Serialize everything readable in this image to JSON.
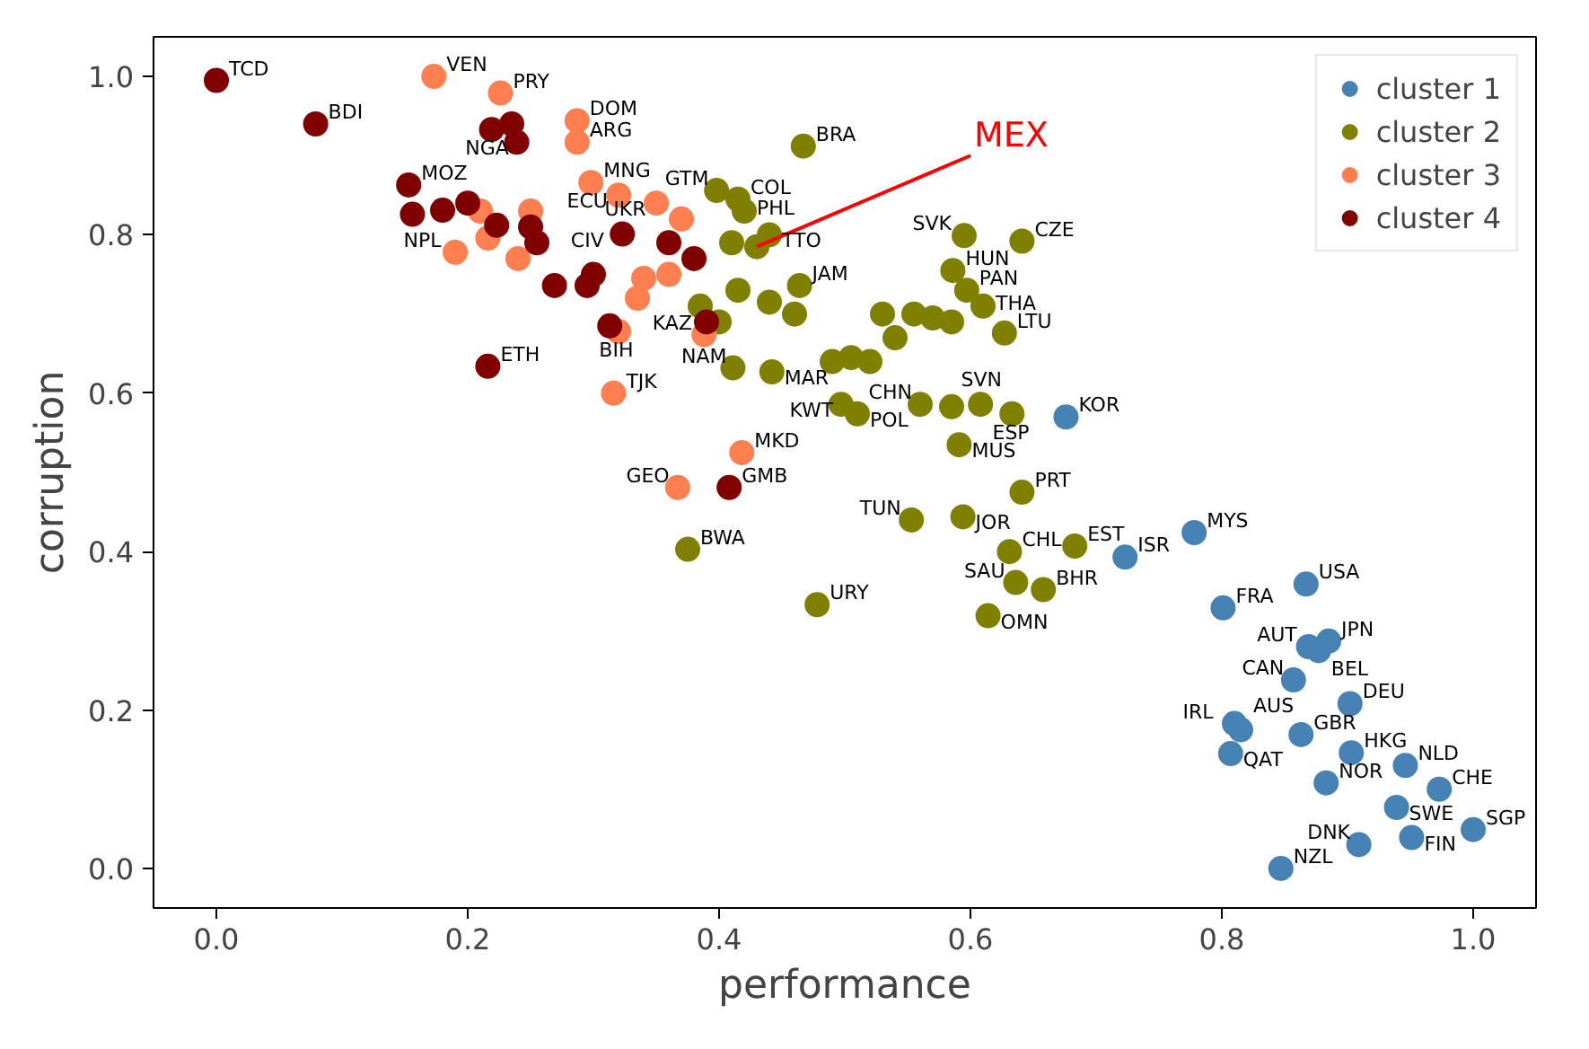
{
  "chart_data": {
    "type": "scatter",
    "xlabel": "performance",
    "ylabel": "corruption",
    "xlim": [
      -0.05,
      1.05
    ],
    "ylim": [
      -0.05,
      1.05
    ],
    "xticks": [
      {
        "value": 0,
        "label": "0.0"
      },
      {
        "value": 0.2,
        "label": "0.2"
      },
      {
        "value": 0.4,
        "label": "0.4"
      },
      {
        "value": 0.6,
        "label": "0.6"
      },
      {
        "value": 0.8,
        "label": "0.8"
      },
      {
        "value": 1,
        "label": "1.0"
      }
    ],
    "yticks": [
      {
        "value": 0,
        "label": "0.0"
      },
      {
        "value": 0.2,
        "label": "0.2"
      },
      {
        "value": 0.4,
        "label": "0.4"
      },
      {
        "value": 0.6,
        "label": "0.6"
      },
      {
        "value": 0.8,
        "label": "0.8"
      },
      {
        "value": 1,
        "label": "1.0"
      }
    ],
    "grid": false,
    "legend": "top right",
    "marker": "circle",
    "series": [
      {
        "name": "cluster 1",
        "color": "#4682b4",
        "x": [
          0.676,
          0.778,
          0.723,
          0.867,
          0.801,
          0.869,
          0.885,
          0.877,
          0.857,
          0.902,
          0.81,
          0.815,
          0.863,
          0.807,
          0.903,
          0.883,
          0.946,
          0.973,
          0.939,
          1.0,
          0.951,
          0.909,
          0.847
        ],
        "values": [
          0.57,
          0.424,
          0.393,
          0.359,
          0.329,
          0.28,
          0.287,
          0.275,
          0.238,
          0.208,
          0.183,
          0.175,
          0.169,
          0.145,
          0.146,
          0.108,
          0.13,
          0.1,
          0.077,
          0.049,
          0.039,
          0.03,
          0.0
        ]
      },
      {
        "name": "cluster 2",
        "color": "#808000",
        "x": [
          0.467,
          0.641,
          0.595,
          0.586,
          0.597,
          0.61,
          0.627,
          0.585,
          0.57,
          0.555,
          0.53,
          0.464,
          0.398,
          0.415,
          0.42,
          0.44,
          0.41,
          0.46,
          0.44,
          0.415,
          0.385,
          0.4,
          0.49,
          0.505,
          0.52,
          0.411,
          0.442,
          0.497,
          0.51,
          0.56,
          0.585,
          0.608,
          0.633,
          0.591,
          0.641,
          0.553,
          0.594,
          0.631,
          0.683,
          0.636,
          0.658,
          0.614,
          0.478,
          0.375,
          0.54,
          0.43
        ],
        "values": [
          0.912,
          0.792,
          0.799,
          0.755,
          0.73,
          0.71,
          0.676,
          0.69,
          0.695,
          0.7,
          0.7,
          0.736,
          0.856,
          0.845,
          0.83,
          0.8,
          0.79,
          0.7,
          0.715,
          0.73,
          0.71,
          0.69,
          0.64,
          0.645,
          0.64,
          0.632,
          0.627,
          0.586,
          0.574,
          0.586,
          0.583,
          0.586,
          0.574,
          0.535,
          0.475,
          0.44,
          0.444,
          0.4,
          0.407,
          0.361,
          0.352,
          0.319,
          0.333,
          0.403,
          0.67,
          0.785
        ]
      },
      {
        "name": "cluster 3",
        "color": "#ff7f50",
        "x": [
          0.173,
          0.226,
          0.287,
          0.287,
          0.298,
          0.32,
          0.35,
          0.37,
          0.19,
          0.216,
          0.24,
          0.21,
          0.25,
          0.34,
          0.36,
          0.335,
          0.388,
          0.32,
          0.316,
          0.367,
          0.418
        ],
        "values": [
          1.0,
          0.979,
          0.944,
          0.917,
          0.866,
          0.85,
          0.84,
          0.82,
          0.778,
          0.796,
          0.77,
          0.83,
          0.83,
          0.745,
          0.75,
          0.72,
          0.674,
          0.678,
          0.6,
          0.481,
          0.525
        ]
      },
      {
        "name": "cluster 4",
        "color": "#800000",
        "x": [
          0.0,
          0.079,
          0.219,
          0.235,
          0.239,
          0.153,
          0.156,
          0.18,
          0.2,
          0.223,
          0.25,
          0.269,
          0.295,
          0.3,
          0.323,
          0.36,
          0.38,
          0.313,
          0.216,
          0.408,
          0.255,
          0.39
        ],
        "values": [
          0.995,
          0.94,
          0.933,
          0.94,
          0.917,
          0.863,
          0.826,
          0.831,
          0.84,
          0.812,
          0.81,
          0.736,
          0.736,
          0.75,
          0.801,
          0.79,
          0.77,
          0.685,
          0.634,
          0.481,
          0.79,
          0.69
        ]
      }
    ],
    "annotations": [
      {
        "text": "MEX",
        "x": 0.43,
        "y": 0.785
      },
      {
        "text": "KOR",
        "x": 0.676,
        "y": 0.57
      },
      {
        "text": "MYS",
        "x": 0.778,
        "y": 0.424
      },
      {
        "text": "ISR",
        "x": 0.723,
        "y": 0.393
      },
      {
        "text": "USA",
        "x": 0.867,
        "y": 0.359
      },
      {
        "text": "FRA",
        "x": 0.801,
        "y": 0.329
      },
      {
        "text": "AUT",
        "x": 0.869,
        "y": 0.28
      },
      {
        "text": "JPN",
        "x": 0.885,
        "y": 0.287
      },
      {
        "text": "BEL",
        "x": 0.877,
        "y": 0.275
      },
      {
        "text": "CAN",
        "x": 0.857,
        "y": 0.238
      },
      {
        "text": "DEU",
        "x": 0.902,
        "y": 0.208
      },
      {
        "text": "IRL",
        "x": 0.81,
        "y": 0.183
      },
      {
        "text": "AUS",
        "x": 0.815,
        "y": 0.175
      },
      {
        "text": "GBR",
        "x": 0.863,
        "y": 0.169
      },
      {
        "text": "QAT",
        "x": 0.807,
        "y": 0.145
      },
      {
        "text": "HKG",
        "x": 0.903,
        "y": 0.146
      },
      {
        "text": "NOR",
        "x": 0.883,
        "y": 0.108
      },
      {
        "text": "NLD",
        "x": 0.946,
        "y": 0.13
      },
      {
        "text": "CHE",
        "x": 0.973,
        "y": 0.1
      },
      {
        "text": "SWE",
        "x": 0.939,
        "y": 0.077
      },
      {
        "text": "SGP",
        "x": 1.0,
        "y": 0.049
      },
      {
        "text": "FIN",
        "x": 0.951,
        "y": 0.039
      },
      {
        "text": "DNK",
        "x": 0.909,
        "y": 0.03
      },
      {
        "text": "NZL",
        "x": 0.847,
        "y": 0.0
      },
      {
        "text": "BRA",
        "x": 0.467,
        "y": 0.912
      },
      {
        "text": "CZE",
        "x": 0.641,
        "y": 0.792
      },
      {
        "text": "SVK",
        "x": 0.595,
        "y": 0.799
      },
      {
        "text": "HUN",
        "x": 0.586,
        "y": 0.755
      },
      {
        "text": "PAN",
        "x": 0.597,
        "y": 0.73
      },
      {
        "text": "THA",
        "x": 0.61,
        "y": 0.71
      },
      {
        "text": "LTU",
        "x": 0.627,
        "y": 0.676
      },
      {
        "text": "JAM",
        "x": 0.464,
        "y": 0.736
      },
      {
        "text": "GTM",
        "x": 0.398,
        "y": 0.856
      },
      {
        "text": "COL",
        "x": 0.415,
        "y": 0.845
      },
      {
        "text": "PHL",
        "x": 0.42,
        "y": 0.83
      },
      {
        "text": "TTO",
        "x": 0.44,
        "y": 0.8
      },
      {
        "text": "NAM",
        "x": 0.411,
        "y": 0.632
      },
      {
        "text": "MAR",
        "x": 0.442,
        "y": 0.627
      },
      {
        "text": "KWT",
        "x": 0.497,
        "y": 0.586
      },
      {
        "text": "POL",
        "x": 0.51,
        "y": 0.574
      },
      {
        "text": "CHN",
        "x": 0.56,
        "y": 0.586
      },
      {
        "text": "SVN",
        "x": 0.608,
        "y": 0.586
      },
      {
        "text": "ESP",
        "x": 0.633,
        "y": 0.574
      },
      {
        "text": "MUS",
        "x": 0.591,
        "y": 0.535
      },
      {
        "text": "PRT",
        "x": 0.641,
        "y": 0.475
      },
      {
        "text": "TUN",
        "x": 0.553,
        "y": 0.44
      },
      {
        "text": "JOR",
        "x": 0.594,
        "y": 0.444
      },
      {
        "text": "CHL",
        "x": 0.631,
        "y": 0.4
      },
      {
        "text": "EST",
        "x": 0.683,
        "y": 0.407
      },
      {
        "text": "SAU",
        "x": 0.636,
        "y": 0.361
      },
      {
        "text": "BHR",
        "x": 0.658,
        "y": 0.352
      },
      {
        "text": "OMN",
        "x": 0.614,
        "y": 0.319
      },
      {
        "text": "URY",
        "x": 0.478,
        "y": 0.333
      },
      {
        "text": "BWA",
        "x": 0.375,
        "y": 0.403
      },
      {
        "text": "VEN",
        "x": 0.173,
        "y": 1.0
      },
      {
        "text": "PRY",
        "x": 0.226,
        "y": 0.979
      },
      {
        "text": "DOM",
        "x": 0.287,
        "y": 0.944
      },
      {
        "text": "ARG",
        "x": 0.287,
        "y": 0.917
      },
      {
        "text": "MNG",
        "x": 0.298,
        "y": 0.866
      },
      {
        "text": "ECU",
        "x": 0.32,
        "y": 0.85
      },
      {
        "text": "UKR",
        "x": 0.35,
        "y": 0.84
      },
      {
        "text": "NPL",
        "x": 0.19,
        "y": 0.778
      },
      {
        "text": "KAZ",
        "x": 0.388,
        "y": 0.674
      },
      {
        "text": "BIH",
        "x": 0.32,
        "y": 0.678
      },
      {
        "text": "TJK",
        "x": 0.316,
        "y": 0.6
      },
      {
        "text": "GEO",
        "x": 0.367,
        "y": 0.481
      },
      {
        "text": "MKD",
        "x": 0.418,
        "y": 0.525
      },
      {
        "text": "TCD",
        "x": 0.0,
        "y": 0.995
      },
      {
        "text": "BDI",
        "x": 0.079,
        "y": 0.94
      },
      {
        "text": "NGA",
        "x": 0.239,
        "y": 0.917
      },
      {
        "text": "MOZ",
        "x": 0.153,
        "y": 0.863
      },
      {
        "text": "CIV",
        "x": 0.323,
        "y": 0.801
      },
      {
        "text": "ETH",
        "x": 0.216,
        "y": 0.634
      },
      {
        "text": "GMB",
        "x": 0.408,
        "y": 0.481
      }
    ]
  }
}
